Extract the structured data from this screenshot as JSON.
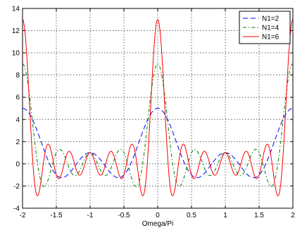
{
  "chart_data": {
    "type": "line",
    "title": "",
    "xlabel": "Omega/Pi",
    "ylabel": "",
    "xlim": [
      -2,
      2
    ],
    "ylim": [
      -4,
      14
    ],
    "xticks": [
      -2,
      -1.5,
      -1,
      -0.5,
      0,
      0.5,
      1,
      1.5,
      2
    ],
    "xtick_labels": [
      "-2",
      "-1.5",
      "-1",
      "-0.5",
      "0",
      "0.5",
      "1",
      "1.5",
      "2"
    ],
    "yticks": [
      -4,
      -2,
      0,
      2,
      4,
      6,
      8,
      10,
      12,
      14
    ],
    "ytick_labels": [
      "-4",
      "-2",
      "0",
      "2",
      "4",
      "6",
      "8",
      "10",
      "12",
      "14"
    ],
    "grid": true,
    "legend_position": "top-right",
    "series": [
      {
        "name": "N1=2",
        "N": 2,
        "color": "#0000ff",
        "dash": "long-dash"
      },
      {
        "name": "N1=4",
        "N": 4,
        "color": "#008000",
        "dash": "dash-dot"
      },
      {
        "name": "N1=6",
        "N": 6,
        "color": "#ff0000",
        "dash": "solid"
      }
    ]
  }
}
